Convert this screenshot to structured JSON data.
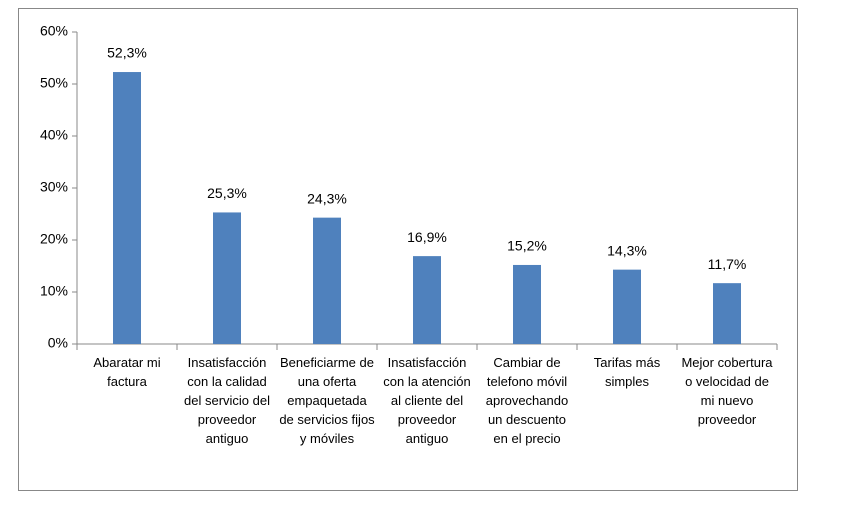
{
  "chart_data": {
    "type": "bar",
    "categories": [
      "Abaratar mi factura",
      "Insatisfacción con la calidad del servicio del proveedor antiguo",
      "Beneficiarme de una oferta empaquetada de servicios fijos y móviles",
      "Insatisfacción con la atención al cliente del proveedor antiguo",
      "Cambiar de telefono móvil aprovechando un descuento en el precio",
      "Tarifas más simples",
      "Mejor cobertura o velocidad de mi nuevo proveedor"
    ],
    "values": [
      52.3,
      25.3,
      24.3,
      16.9,
      15.2,
      14.3,
      11.7
    ],
    "value_labels": [
      "52,3%",
      "25,3%",
      "24,3%",
      "16,9%",
      "15,2%",
      "14,3%",
      "11,7%"
    ],
    "color": "#4f81bd",
    "ylim": [
      0,
      60
    ],
    "yticks": [
      {
        "value": 0,
        "label": "0%"
      },
      {
        "value": 10,
        "label": "10%"
      },
      {
        "value": 20,
        "label": "20%"
      },
      {
        "value": 30,
        "label": "30%"
      },
      {
        "value": 40,
        "label": "40%"
      },
      {
        "value": 50,
        "label": "50%"
      },
      {
        "value": 60,
        "label": "60%"
      }
    ],
    "grid": false
  }
}
